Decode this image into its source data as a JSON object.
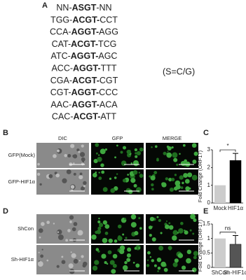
{
  "panel_a": {
    "label": "A",
    "sequences": [
      [
        "NN-",
        "ASGT",
        "-NN"
      ],
      [
        "TGG-",
        "ACGT-",
        "CCT"
      ],
      [
        "CCA-",
        "AGGT-",
        "AGG"
      ],
      [
        "CAT-",
        "ACGT-",
        "TCG"
      ],
      [
        "ATC-",
        "AGGT-",
        "AGC"
      ],
      [
        "ACC-",
        "AGGT-",
        "TTT"
      ],
      [
        "CGA-",
        "ACGT-",
        "CGT"
      ],
      [
        "CGT-",
        "AGGT-",
        "CCC"
      ],
      [
        "AAC-",
        "AGGT-",
        "ACA"
      ],
      [
        "CAC-",
        "ACGT-",
        "ATT"
      ]
    ],
    "note": "(S=C/G)"
  },
  "panel_b": {
    "label": "B",
    "columns": [
      "DIC",
      "GFP",
      "MERGE"
    ],
    "rows": [
      "GFP(Mock)",
      "GFP-HIF1α"
    ]
  },
  "panel_d": {
    "label": "D",
    "rows": [
      "ShCon",
      "Sh-HIF1α"
    ]
  },
  "chart_data": [
    {
      "type": "bar",
      "panel_label": "C",
      "ylabel": "Fold Change (ORF17)",
      "categories": [
        "Mock",
        "HIF1α"
      ],
      "values": [
        1,
        2.4
      ],
      "errors": [
        null,
        0.4
      ],
      "colors": [
        "#cccccc",
        "#000000"
      ],
      "ylim": [
        0,
        3
      ],
      "yticks": [
        0,
        1,
        2,
        3
      ],
      "annotation": "*"
    },
    {
      "type": "bar",
      "panel_label": "E",
      "ylabel": "Fold Change (ORF17)",
      "categories": [
        "ShCon",
        "Sh-HIF1α"
      ],
      "values": [
        1,
        0.8
      ],
      "errors": [
        null,
        0.3
      ],
      "colors": [
        "#cccccc",
        "#555555"
      ],
      "ylim": [
        0,
        1.5
      ],
      "yticks": [
        0,
        0.5,
        1,
        1.5
      ],
      "annotation": "ns"
    }
  ]
}
